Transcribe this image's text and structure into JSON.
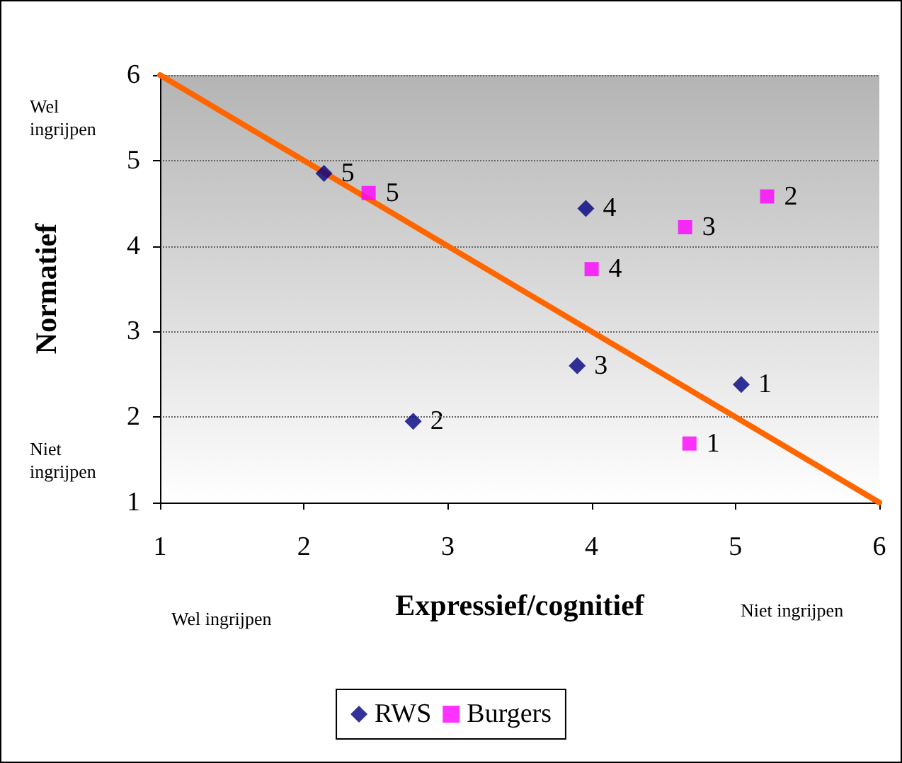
{
  "chart_data": {
    "type": "scatter",
    "xlabel": "Expressief/cognitief",
    "ylabel": "Normatief",
    "xlim": [
      1,
      6
    ],
    "ylim": [
      1,
      6
    ],
    "xticks": [
      1,
      2,
      3,
      4,
      5,
      6
    ],
    "yticks": [
      1,
      2,
      3,
      4,
      5,
      6
    ],
    "grid": "y",
    "legend": "bottom",
    "series": [
      {
        "name": "RWS",
        "color": "#000080",
        "marker": "diamond",
        "x": [
          5.04,
          2.76,
          3.9,
          3.96,
          2.14
        ],
        "values": [
          2.38,
          1.95,
          2.6,
          4.44,
          4.85
        ]
      },
      {
        "name": "Burgers",
        "color": "#ff00ff",
        "marker": "square",
        "x": [
          4.68,
          5.22,
          4.65,
          4.0,
          2.45
        ],
        "values": [
          1.69,
          4.58,
          4.22,
          3.73,
          4.62
        ]
      },
      {
        "type": "line",
        "color": "#ff6600",
        "marker": "none",
        "x": [
          1,
          6
        ],
        "values": [
          6,
          1
        ]
      }
    ],
    "annotations": [
      "Wel ingrijpen",
      "Niet ingrijpen",
      "Wel ingrijpen",
      "Niet ingrijpen",
      {
        "text": "1",
        "x": 5.04,
        "y": 2.38
      },
      {
        "text": "2",
        "x": 2.76,
        "y": 1.95
      },
      {
        "text": "3",
        "x": 3.9,
        "y": 2.6
      },
      {
        "text": "4",
        "x": 3.96,
        "y": 4.44
      },
      {
        "text": "5",
        "x": 2.14,
        "y": 4.85
      },
      {
        "text": "1",
        "x": 4.68,
        "y": 1.69
      },
      {
        "text": "2",
        "x": 5.22,
        "y": 4.58
      },
      {
        "text": "3",
        "x": 4.65,
        "y": 4.22
      },
      {
        "text": "4",
        "x": 4.0,
        "y": 3.73
      },
      {
        "text": "5",
        "x": 2.45,
        "y": 4.62
      }
    ]
  }
}
